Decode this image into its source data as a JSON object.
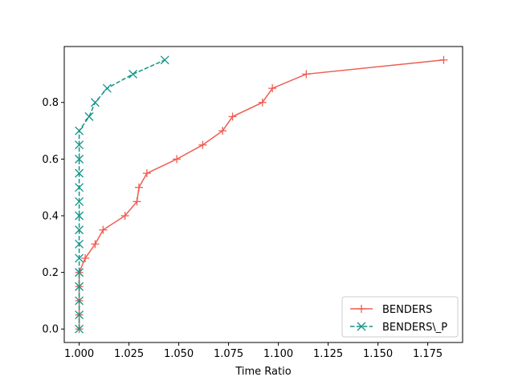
{
  "chart_data": {
    "type": "line",
    "title": "",
    "xlabel": "Time Ratio",
    "ylabel": "",
    "xlim": [
      0.9925,
      1.1925
    ],
    "ylim": [
      -0.0475,
      0.9975
    ],
    "xticks": [
      1.0,
      1.025,
      1.05,
      1.075,
      1.1,
      1.125,
      1.15,
      1.175
    ],
    "xtick_labels": [
      "1.000",
      "1.025",
      "1.050",
      "1.075",
      "1.100",
      "1.125",
      "1.150",
      "1.175"
    ],
    "yticks": [
      0.0,
      0.2,
      0.4,
      0.6,
      0.8
    ],
    "ytick_labels": [
      "0.0",
      "0.2",
      "0.4",
      "0.6",
      "0.8"
    ],
    "grid": false,
    "legend_position": "lower-right",
    "series": [
      {
        "name": "BENDERS",
        "color": "#ee5d52",
        "line_style": "solid",
        "marker": "plus",
        "x": [
          1.0,
          1.0,
          1.0,
          1.0,
          1.0,
          1.003,
          1.008,
          1.012,
          1.023,
          1.029,
          1.03,
          1.034,
          1.049,
          1.062,
          1.072,
          1.077,
          1.092,
          1.097,
          1.114,
          1.183
        ],
        "y": [
          0.0,
          0.05,
          0.1,
          0.15,
          0.2,
          0.25,
          0.3,
          0.35,
          0.4,
          0.45,
          0.5,
          0.55,
          0.6,
          0.65,
          0.7,
          0.75,
          0.8,
          0.85,
          0.9,
          0.95
        ]
      },
      {
        "name": "BENDERS\\_P",
        "color": "#11948a",
        "line_style": "dashed",
        "marker": "x",
        "x": [
          1.0,
          1.0,
          1.0,
          1.0,
          1.0,
          1.0,
          1.0,
          1.0,
          1.0,
          1.0,
          1.0,
          1.0,
          1.0,
          1.0,
          1.0,
          1.005,
          1.008,
          1.014,
          1.027,
          1.043
        ],
        "y": [
          0.0,
          0.05,
          0.1,
          0.15,
          0.2,
          0.25,
          0.3,
          0.35,
          0.4,
          0.45,
          0.5,
          0.55,
          0.6,
          0.65,
          0.7,
          0.75,
          0.8,
          0.85,
          0.9,
          0.95
        ]
      }
    ]
  }
}
